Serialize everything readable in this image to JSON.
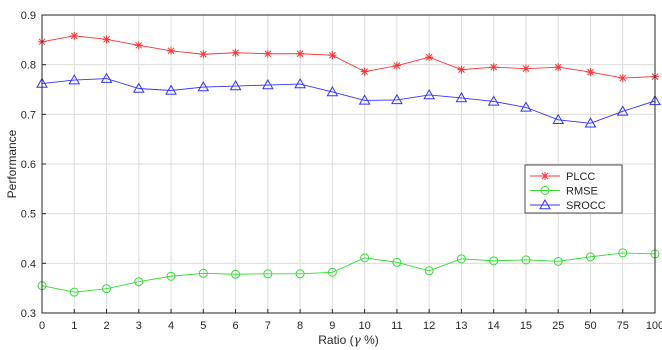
{
  "chart_data": {
    "type": "line",
    "x_ticks": [
      "0",
      "1",
      "2",
      "3",
      "4",
      "5",
      "6",
      "7",
      "8",
      "9",
      "10",
      "11",
      "12",
      "13",
      "14",
      "15",
      "25",
      "50",
      "75",
      "100"
    ],
    "xlabel_prefix": "Ratio (",
    "xlabel_symbol": "γ",
    "xlabel_suffix": " %)",
    "ylabel": "Performance",
    "ylim": [
      0.3,
      0.9
    ],
    "y_ticks": [
      "0.3",
      "0.4",
      "0.5",
      "0.6",
      "0.7",
      "0.8",
      "0.9"
    ],
    "grid": true,
    "legend_position": "right",
    "series": [
      {
        "name": "PLCC",
        "color": "#ff3333",
        "marker": "asterisk",
        "values": [
          0.846,
          0.858,
          0.851,
          0.839,
          0.828,
          0.821,
          0.824,
          0.822,
          0.822,
          0.819,
          0.786,
          0.798,
          0.815,
          0.79,
          0.795,
          0.792,
          0.795,
          0.785,
          0.773,
          0.776
        ]
      },
      {
        "name": "RMSE",
        "color": "#33dd33",
        "marker": "circle",
        "values": [
          0.355,
          0.342,
          0.349,
          0.363,
          0.374,
          0.38,
          0.378,
          0.379,
          0.379,
          0.382,
          0.411,
          0.402,
          0.385,
          0.409,
          0.405,
          0.407,
          0.404,
          0.413,
          0.421,
          0.419
        ]
      },
      {
        "name": "SROCC",
        "color": "#3333ff",
        "marker": "triangle",
        "values": [
          0.762,
          0.769,
          0.772,
          0.752,
          0.748,
          0.755,
          0.757,
          0.759,
          0.761,
          0.745,
          0.728,
          0.729,
          0.739,
          0.733,
          0.726,
          0.714,
          0.689,
          0.682,
          0.706,
          0.727
        ]
      }
    ]
  }
}
